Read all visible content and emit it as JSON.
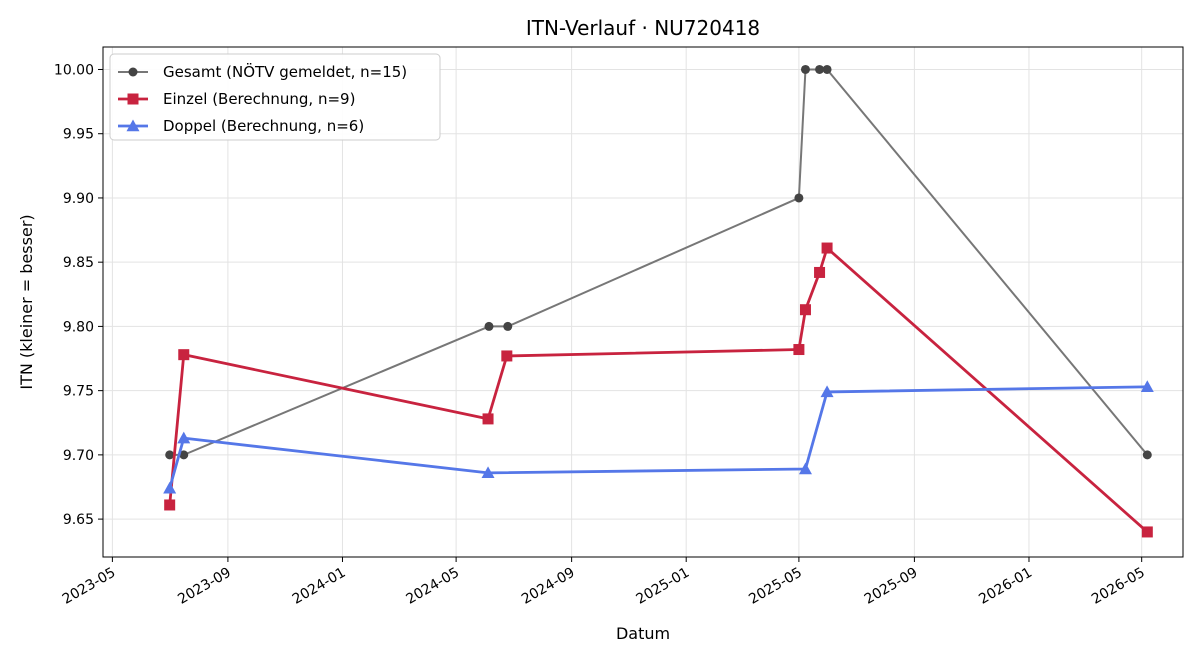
{
  "chart_data": {
    "type": "line",
    "title": "ITN-Verlauf · NU720418",
    "xlabel": "Datum",
    "ylabel": "ITN  (kleiner = besser)",
    "x_ticks": [
      "2023-05",
      "2023-09",
      "2024-01",
      "2024-05",
      "2024-09",
      "2025-01",
      "2025-05",
      "2025-09",
      "2026-01",
      "2026-05"
    ],
    "y_ticks": [
      "9.65",
      "9.70",
      "9.75",
      "9.80",
      "9.85",
      "9.90",
      "9.95",
      "10.00"
    ],
    "xlim": [
      "2023-04-21",
      "2026-06-14"
    ],
    "ylim": [
      9.6205,
      10.0175
    ],
    "grid": true,
    "legend_position": "top-left",
    "series": [
      {
        "name": "Gesamt (NÖTV gemeldet, n=15)",
        "color": "#777777",
        "marker_color": "#444444",
        "marker": "circle",
        "points": [
          {
            "x": "2023-07-01",
            "y": 9.7
          },
          {
            "x": "2023-07-16",
            "y": 9.7
          },
          {
            "x": "2024-06-05",
            "y": 9.8
          },
          {
            "x": "2024-06-25",
            "y": 9.8
          },
          {
            "x": "2025-05-01",
            "y": 9.9
          },
          {
            "x": "2025-05-08",
            "y": 10.0
          },
          {
            "x": "2025-05-23",
            "y": 10.0
          },
          {
            "x": "2025-05-31",
            "y": 10.0
          },
          {
            "x": "2026-05-07",
            "y": 9.7
          }
        ]
      },
      {
        "name": "Einzel (Berechnung, n=9)",
        "color": "#c8233f",
        "marker": "square",
        "points": [
          {
            "x": "2023-07-01",
            "y": 9.661
          },
          {
            "x": "2023-07-16",
            "y": 9.778
          },
          {
            "x": "2024-06-04",
            "y": 9.728
          },
          {
            "x": "2024-06-24",
            "y": 9.777
          },
          {
            "x": "2025-05-01",
            "y": 9.782
          },
          {
            "x": "2025-05-08",
            "y": 9.813
          },
          {
            "x": "2025-05-23",
            "y": 9.842
          },
          {
            "x": "2025-05-31",
            "y": 9.861
          },
          {
            "x": "2026-05-07",
            "y": 9.64
          }
        ]
      },
      {
        "name": "Doppel (Berechnung, n=6)",
        "color": "#5577e8",
        "marker": "triangle",
        "points": [
          {
            "x": "2023-07-01",
            "y": 9.674
          },
          {
            "x": "2023-07-16",
            "y": 9.713
          },
          {
            "x": "2024-06-04",
            "y": 9.686
          },
          {
            "x": "2025-05-08",
            "y": 9.689
          },
          {
            "x": "2025-05-31",
            "y": 9.749
          },
          {
            "x": "2026-05-07",
            "y": 9.753
          }
        ]
      }
    ]
  }
}
